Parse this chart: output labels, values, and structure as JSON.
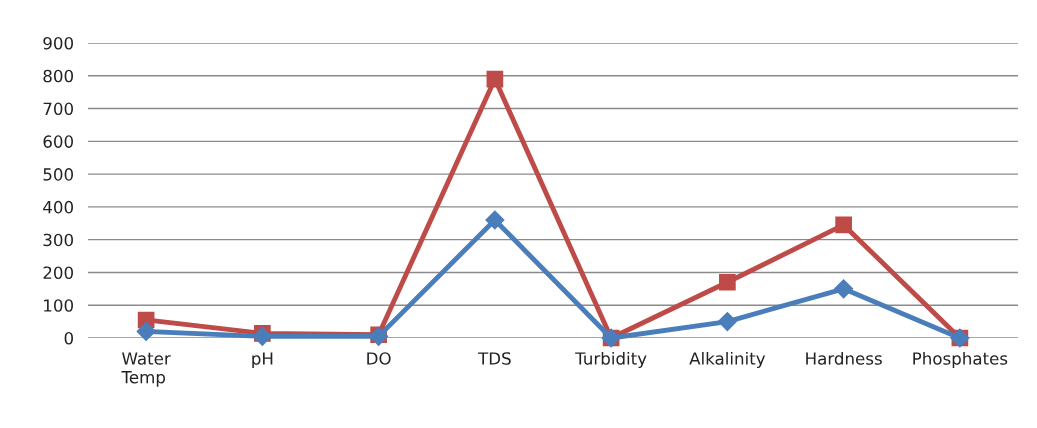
{
  "chart_data": {
    "type": "line",
    "categories": [
      "Water Temp",
      "pH",
      "DO",
      "TDS",
      "Turbidity",
      "Alkalinity",
      "Hardness",
      "Phosphates"
    ],
    "series": [
      {
        "color": "#4a7ebb",
        "marker": "diamond",
        "values": [
          20,
          5,
          5,
          360,
          0,
          50,
          150,
          0
        ]
      },
      {
        "color": "#be4b48",
        "marker": "square",
        "values": [
          55,
          14,
          10,
          790,
          0,
          170,
          345,
          0
        ]
      }
    ],
    "ylim": [
      0,
      900
    ],
    "yticks": [
      0,
      100,
      200,
      300,
      400,
      500,
      600,
      700,
      800,
      900
    ],
    "grid": "y",
    "line_style": "solid"
  }
}
